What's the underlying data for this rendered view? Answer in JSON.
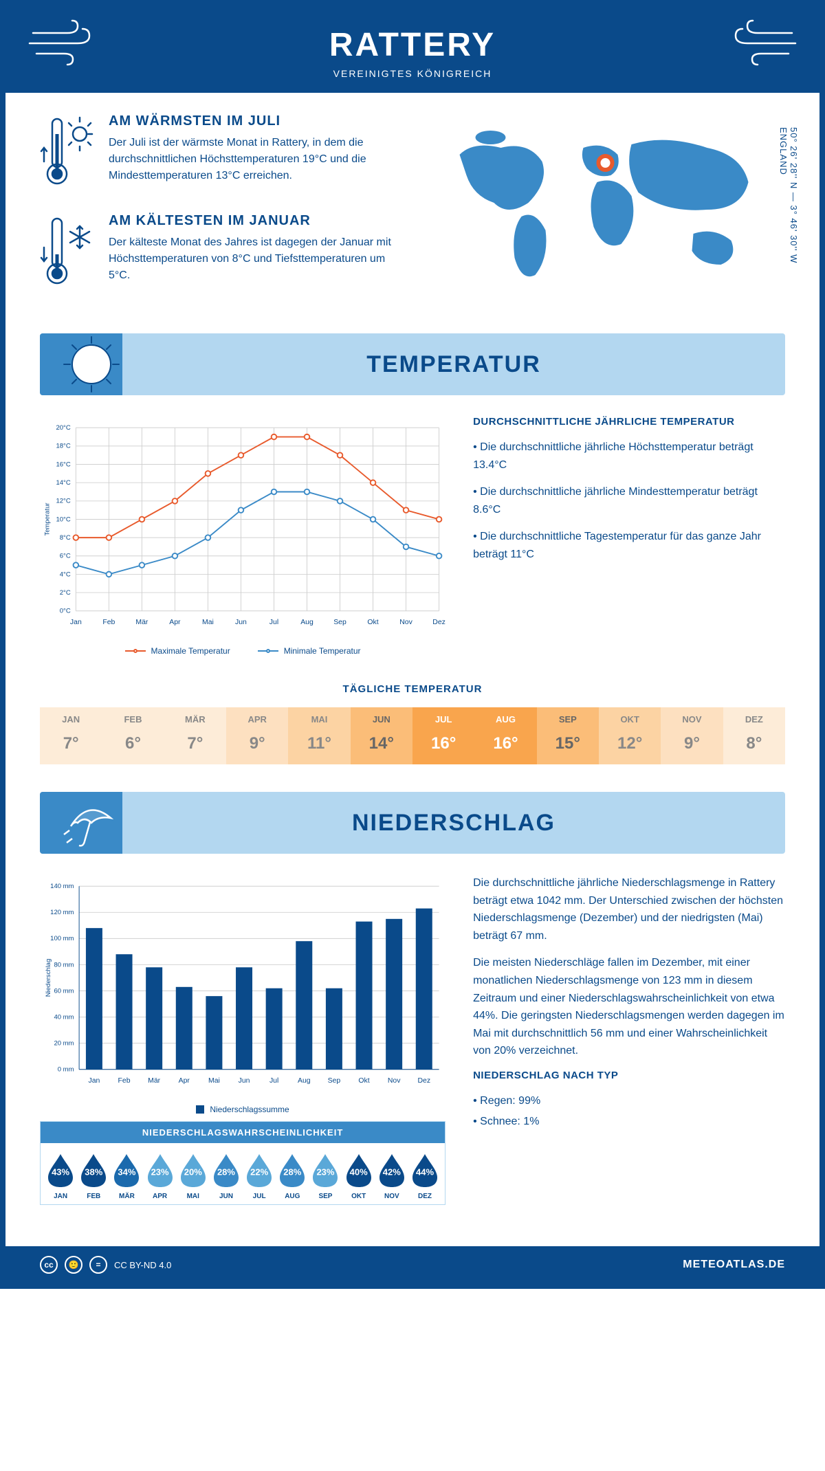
{
  "header": {
    "title": "RATTERY",
    "subtitle": "VEREINIGTES KÖNIGREICH"
  },
  "coords": {
    "lat": "50° 26' 28'' N",
    "lon": "3° 46' 30'' W",
    "region": "ENGLAND"
  },
  "facts": {
    "warm": {
      "title": "AM WÄRMSTEN IM JULI",
      "text": "Der Juli ist der wärmste Monat in Rattery, in dem die durchschnittlichen Höchsttemperaturen 19°C und die Mindesttemperaturen 13°C erreichen."
    },
    "cold": {
      "title": "AM KÄLTESTEN IM JANUAR",
      "text": "Der kälteste Monat des Jahres ist dagegen der Januar mit Höchsttemperaturen von 8°C und Tiefsttemperaturen um 5°C."
    }
  },
  "sections": {
    "temp_title": "TEMPERATUR",
    "precip_title": "NIEDERSCHLAG"
  },
  "temp_chart": {
    "type": "line",
    "months": [
      "Jan",
      "Feb",
      "Mär",
      "Apr",
      "Mai",
      "Jun",
      "Jul",
      "Aug",
      "Sep",
      "Okt",
      "Nov",
      "Dez"
    ],
    "max_series": [
      8,
      8,
      10,
      12,
      15,
      17,
      19,
      19,
      17,
      14,
      11,
      10
    ],
    "min_series": [
      5,
      4,
      5,
      6,
      8,
      11,
      13,
      13,
      12,
      10,
      7,
      6
    ],
    "max_color": "#e85a2c",
    "min_color": "#3a8ac7",
    "ylabel": "Temperatur",
    "ylim": [
      0,
      20
    ],
    "ytick_step": 2,
    "grid_color": "#d0d0d0",
    "background": "#ffffff",
    "legend_max": "Maximale Temperatur",
    "legend_min": "Minimale Temperatur",
    "line_width": 2,
    "marker_size": 4
  },
  "temp_text": {
    "heading": "DURCHSCHNITTLICHE JÄHRLICHE TEMPERATUR",
    "b1": "• Die durchschnittliche jährliche Höchsttemperatur beträgt 13.4°C",
    "b2": "• Die durchschnittliche jährliche Mindesttemperatur beträgt 8.6°C",
    "b3": "• Die durchschnittliche Tagestemperatur für das ganze Jahr beträgt 11°C"
  },
  "daily_temp": {
    "title": "TÄGLICHE TEMPERATUR",
    "months": [
      "JAN",
      "FEB",
      "MÄR",
      "APR",
      "MAI",
      "JUN",
      "JUL",
      "AUG",
      "SEP",
      "OKT",
      "NOV",
      "DEZ"
    ],
    "values": [
      "7°",
      "6°",
      "7°",
      "9°",
      "11°",
      "14°",
      "16°",
      "16°",
      "15°",
      "12°",
      "9°",
      "8°"
    ],
    "bg_colors": [
      "#fdecd8",
      "#fdecd8",
      "#fdecd8",
      "#fde0c0",
      "#fcd3a3",
      "#fbbd78",
      "#f9a54d",
      "#f9a54d",
      "#fbbd78",
      "#fcd3a3",
      "#fde0c0",
      "#fdecd8"
    ],
    "text_colors": [
      "#888",
      "#888",
      "#888",
      "#888",
      "#888",
      "#666",
      "#fff",
      "#fff",
      "#666",
      "#888",
      "#888",
      "#888"
    ]
  },
  "precip_chart": {
    "type": "bar",
    "months": [
      "Jan",
      "Feb",
      "Mär",
      "Apr",
      "Mai",
      "Jun",
      "Jul",
      "Aug",
      "Sep",
      "Okt",
      "Nov",
      "Dez"
    ],
    "values": [
      108,
      88,
      78,
      63,
      56,
      78,
      62,
      98,
      62,
      113,
      115,
      123
    ],
    "bar_color": "#0a4a8a",
    "ylabel": "Niederschlag",
    "ylim": [
      0,
      140
    ],
    "ytick_step": 20,
    "grid_color": "#d0d0d0",
    "legend": "Niederschlagssumme",
    "bar_width": 0.55
  },
  "precip_text": {
    "p1": "Die durchschnittliche jährliche Niederschlagsmenge in Rattery beträgt etwa 1042 mm. Der Unterschied zwischen der höchsten Niederschlagsmenge (Dezember) und der niedrigsten (Mai) beträgt 67 mm.",
    "p2": "Die meisten Niederschläge fallen im Dezember, mit einer monatlichen Niederschlagsmenge von 123 mm in diesem Zeitraum und einer Niederschlagswahrscheinlichkeit von etwa 44%. Die geringsten Niederschlagsmengen werden dagegen im Mai mit durchschnittlich 56 mm und einer Wahrscheinlichkeit von 20% verzeichnet.",
    "type_heading": "NIEDERSCHLAG NACH TYP",
    "type_b1": "• Regen: 99%",
    "type_b2": "• Schnee: 1%"
  },
  "precip_prob": {
    "title": "NIEDERSCHLAGSWAHRSCHEINLICHKEIT",
    "months": [
      "JAN",
      "FEB",
      "MÄR",
      "APR",
      "MAI",
      "JUN",
      "JUL",
      "AUG",
      "SEP",
      "OKT",
      "NOV",
      "DEZ"
    ],
    "values": [
      "43%",
      "38%",
      "34%",
      "23%",
      "20%",
      "28%",
      "22%",
      "28%",
      "23%",
      "40%",
      "42%",
      "44%"
    ],
    "colors": [
      "#0a4a8a",
      "#0a4a8a",
      "#1b6aad",
      "#5aa8d8",
      "#5aa8d8",
      "#3a8ac7",
      "#5aa8d8",
      "#3a8ac7",
      "#5aa8d8",
      "#0a4a8a",
      "#0a4a8a",
      "#0a4a8a"
    ]
  },
  "footer": {
    "license": "CC BY-ND 4.0",
    "site": "METEOATLAS.DE"
  },
  "colors": {
    "primary": "#0a4a8a",
    "secondary": "#3a8ac7",
    "light": "#b3d7f0",
    "orange": "#e85a2c"
  }
}
